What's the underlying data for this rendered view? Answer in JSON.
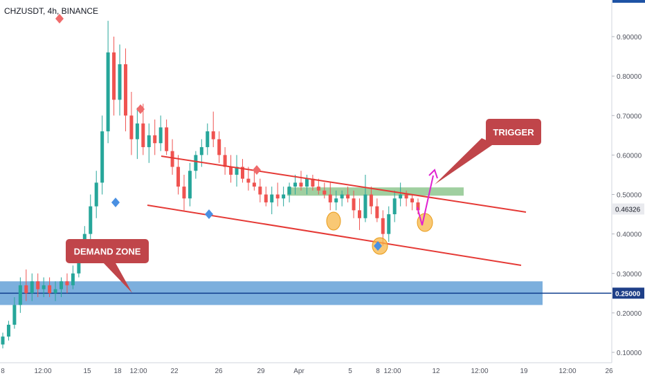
{
  "header": {
    "title": "CHZUSDT, 4h, BINANCE"
  },
  "chart_data": {
    "type": "candlestick",
    "symbol": "CHZUSDT",
    "timeframe": "4h",
    "exchange": "BINANCE",
    "ylim": [
      0.08,
      1.0
    ],
    "y_ticks": [
      {
        "value": 0.9,
        "label": "0.90000"
      },
      {
        "value": 0.8,
        "label": "0.80000"
      },
      {
        "value": 0.7,
        "label": "0.70000"
      },
      {
        "value": 0.6,
        "label": "0.60000"
      },
      {
        "value": 0.5,
        "label": "0.50000"
      },
      {
        "value": 0.4,
        "label": "0.40000"
      },
      {
        "value": 0.3,
        "label": "0.30000"
      },
      {
        "value": 0.2,
        "label": "0.20000"
      },
      {
        "value": 0.1,
        "label": "0.10000"
      }
    ],
    "x_ticks": [
      "8",
      "12:00",
      "15",
      "18",
      "12:00",
      "22",
      "26",
      "29",
      "Apr",
      "5",
      "8",
      "12:00",
      "12",
      "12:00",
      "19",
      "12:00",
      "26"
    ],
    "last_price": {
      "value": 0.46326,
      "label": "0.46326"
    },
    "horizontal_level": {
      "value": 0.25,
      "label": "0.25000",
      "color": "#0d3b8c"
    },
    "demand_zone": {
      "low": 0.22,
      "high": 0.28,
      "color": "#5b9bd5"
    },
    "trigger_zone": {
      "low": 0.497,
      "high": 0.518,
      "color": "#8fc78f"
    },
    "channel_color": "#e53935",
    "annotations": [
      {
        "text": "DEMAND ZONE"
      },
      {
        "text": "TRIGGER"
      }
    ],
    "candle_colors": {
      "up": "#26a69a",
      "down": "#ef5350"
    },
    "ohlc": [
      [
        0.12,
        0.15,
        0.11,
        0.14
      ],
      [
        0.14,
        0.18,
        0.13,
        0.17
      ],
      [
        0.17,
        0.24,
        0.16,
        0.22
      ],
      [
        0.22,
        0.29,
        0.2,
        0.27
      ],
      [
        0.27,
        0.31,
        0.23,
        0.25
      ],
      [
        0.25,
        0.3,
        0.23,
        0.28
      ],
      [
        0.28,
        0.3,
        0.24,
        0.26
      ],
      [
        0.26,
        0.29,
        0.24,
        0.27
      ],
      [
        0.27,
        0.29,
        0.24,
        0.25
      ],
      [
        0.25,
        0.28,
        0.23,
        0.26
      ],
      [
        0.26,
        0.29,
        0.24,
        0.28
      ],
      [
        0.28,
        0.3,
        0.25,
        0.27
      ],
      [
        0.27,
        0.32,
        0.26,
        0.3
      ],
      [
        0.3,
        0.37,
        0.29,
        0.35
      ],
      [
        0.35,
        0.42,
        0.33,
        0.4
      ],
      [
        0.4,
        0.5,
        0.38,
        0.47
      ],
      [
        0.47,
        0.56,
        0.44,
        0.53
      ],
      [
        0.53,
        0.7,
        0.5,
        0.66
      ],
      [
        0.66,
        0.94,
        0.63,
        0.86
      ],
      [
        0.86,
        0.9,
        0.7,
        0.74
      ],
      [
        0.74,
        0.88,
        0.7,
        0.83
      ],
      [
        0.83,
        0.87,
        0.66,
        0.7
      ],
      [
        0.7,
        0.76,
        0.6,
        0.64
      ],
      [
        0.64,
        0.72,
        0.59,
        0.68
      ],
      [
        0.68,
        0.73,
        0.6,
        0.62
      ],
      [
        0.62,
        0.68,
        0.58,
        0.65
      ],
      [
        0.65,
        0.69,
        0.6,
        0.63
      ],
      [
        0.63,
        0.7,
        0.61,
        0.67
      ],
      [
        0.67,
        0.69,
        0.6,
        0.61
      ],
      [
        0.61,
        0.64,
        0.55,
        0.57
      ],
      [
        0.57,
        0.6,
        0.5,
        0.52
      ],
      [
        0.52,
        0.55,
        0.46,
        0.49
      ],
      [
        0.49,
        0.58,
        0.47,
        0.56
      ],
      [
        0.56,
        0.61,
        0.54,
        0.6
      ],
      [
        0.6,
        0.64,
        0.57,
        0.62
      ],
      [
        0.62,
        0.68,
        0.6,
        0.66
      ],
      [
        0.66,
        0.71,
        0.62,
        0.64
      ],
      [
        0.64,
        0.66,
        0.58,
        0.6
      ],
      [
        0.6,
        0.62,
        0.55,
        0.57
      ],
      [
        0.57,
        0.6,
        0.53,
        0.55
      ],
      [
        0.55,
        0.6,
        0.52,
        0.57
      ],
      [
        0.57,
        0.59,
        0.53,
        0.54
      ],
      [
        0.54,
        0.57,
        0.51,
        0.53
      ],
      [
        0.53,
        0.56,
        0.51,
        0.52
      ],
      [
        0.52,
        0.54,
        0.48,
        0.5
      ],
      [
        0.5,
        0.52,
        0.47,
        0.48
      ],
      [
        0.48,
        0.52,
        0.45,
        0.5
      ],
      [
        0.5,
        0.53,
        0.47,
        0.49
      ],
      [
        0.49,
        0.52,
        0.47,
        0.5
      ],
      [
        0.5,
        0.53,
        0.48,
        0.52
      ],
      [
        0.52,
        0.55,
        0.5,
        0.53
      ],
      [
        0.53,
        0.56,
        0.51,
        0.52
      ],
      [
        0.52,
        0.55,
        0.5,
        0.54
      ],
      [
        0.54,
        0.55,
        0.51,
        0.52
      ],
      [
        0.52,
        0.54,
        0.5,
        0.51
      ],
      [
        0.51,
        0.53,
        0.49,
        0.5
      ],
      [
        0.5,
        0.53,
        0.46,
        0.48
      ],
      [
        0.48,
        0.51,
        0.46,
        0.49
      ],
      [
        0.49,
        0.51,
        0.47,
        0.5
      ],
      [
        0.5,
        0.52,
        0.48,
        0.49
      ],
      [
        0.49,
        0.51,
        0.44,
        0.46
      ],
      [
        0.46,
        0.49,
        0.41,
        0.44
      ],
      [
        0.44,
        0.55,
        0.43,
        0.5
      ],
      [
        0.5,
        0.52,
        0.45,
        0.47
      ],
      [
        0.47,
        0.49,
        0.43,
        0.44
      ],
      [
        0.44,
        0.46,
        0.37,
        0.4
      ],
      [
        0.4,
        0.47,
        0.38,
        0.45
      ],
      [
        0.45,
        0.51,
        0.43,
        0.49
      ],
      [
        0.49,
        0.53,
        0.47,
        0.5
      ],
      [
        0.5,
        0.51,
        0.47,
        0.49
      ],
      [
        0.49,
        0.5,
        0.46,
        0.48
      ],
      [
        0.48,
        0.49,
        0.45,
        0.46
      ]
    ]
  }
}
